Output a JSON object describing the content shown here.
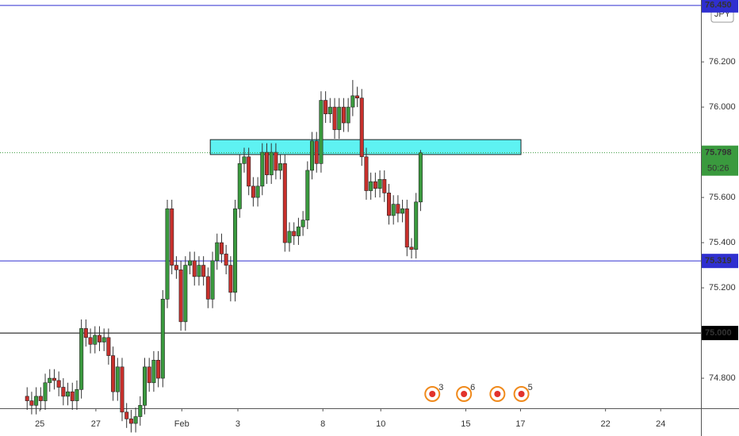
{
  "chart_data": {
    "type": "candlestick",
    "currency": "JPY",
    "x": [
      6,
      7,
      8,
      9,
      10,
      11,
      12,
      13,
      14,
      15,
      16,
      17,
      18,
      19,
      20,
      21,
      22,
      23,
      24,
      25,
      26,
      27,
      28,
      29,
      30,
      31,
      32,
      33,
      34,
      35,
      36,
      37,
      38,
      39,
      40,
      41,
      42,
      43,
      44,
      45,
      46,
      47,
      48,
      49,
      50,
      51,
      52,
      53,
      54,
      55,
      56,
      57,
      58,
      59,
      60,
      61,
      62,
      63,
      64,
      65,
      66,
      67,
      68,
      69,
      70,
      71,
      72,
      73,
      74,
      75,
      76,
      77,
      78,
      79,
      80,
      81,
      82,
      83,
      84,
      85,
      86,
      87,
      88,
      89,
      90,
      91,
      92,
      93
    ],
    "open": [
      74.72,
      74.7,
      74.68,
      74.72,
      74.7,
      74.78,
      74.8,
      74.79,
      74.76,
      74.72,
      74.74,
      74.7,
      74.75,
      75.02,
      74.98,
      74.95,
      74.99,
      74.96,
      74.98,
      74.9,
      74.74,
      74.85,
      74.65,
      74.62,
      74.6,
      74.63,
      74.68,
      74.85,
      74.78,
      74.88,
      74.8,
      75.15,
      75.55,
      75.3,
      75.28,
      75.05,
      75.3,
      75.32,
      75.25,
      75.3,
      75.25,
      75.15,
      75.32,
      75.4,
      75.35,
      75.3,
      75.18,
      75.55,
      75.75,
      75.78,
      75.65,
      75.6,
      75.65,
      75.8,
      75.7,
      75.8,
      75.72,
      75.75,
      75.4,
      75.45,
      75.43,
      75.47,
      75.5,
      75.72,
      75.85,
      75.75,
      76.03,
      75.97,
      76.0,
      75.9,
      76.0,
      75.93,
      76.0,
      76.05,
      76.04,
      75.78,
      75.63,
      75.67,
      75.64,
      75.68,
      75.62,
      75.52,
      75.57,
      75.53,
      75.55,
      75.38,
      75.37,
      75.58
    ],
    "high": [
      74.76,
      74.74,
      74.76,
      74.76,
      74.82,
      74.84,
      74.84,
      74.83,
      74.8,
      74.78,
      74.78,
      74.79,
      75.06,
      75.06,
      75.02,
      75.03,
      75.03,
      75.02,
      75.02,
      74.94,
      74.89,
      74.89,
      74.69,
      74.66,
      74.67,
      74.72,
      74.89,
      74.89,
      74.92,
      74.92,
      75.19,
      75.59,
      75.59,
      75.34,
      75.32,
      75.34,
      75.36,
      75.36,
      75.34,
      75.34,
      75.29,
      75.36,
      75.44,
      75.44,
      75.39,
      75.34,
      75.59,
      75.79,
      75.82,
      75.82,
      75.69,
      75.69,
      75.84,
      75.84,
      75.84,
      75.84,
      75.79,
      75.79,
      75.49,
      75.49,
      75.51,
      75.54,
      75.76,
      75.89,
      75.89,
      76.07,
      76.07,
      76.04,
      76.04,
      76.04,
      76.04,
      76.04,
      76.12,
      76.09,
      76.08,
      75.82,
      75.71,
      75.71,
      75.72,
      75.72,
      75.66,
      75.61,
      75.61,
      75.59,
      75.59,
      75.42,
      75.62,
      75.81
    ],
    "low": [
      74.66,
      74.64,
      74.64,
      74.66,
      74.66,
      74.74,
      74.75,
      74.72,
      74.68,
      74.68,
      74.66,
      74.66,
      74.71,
      74.94,
      74.91,
      74.91,
      74.92,
      74.92,
      74.86,
      74.7,
      74.7,
      74.61,
      74.58,
      74.56,
      74.56,
      74.59,
      74.64,
      74.74,
      74.74,
      74.76,
      74.76,
      75.11,
      75.26,
      75.24,
      75.01,
      75.01,
      75.26,
      75.21,
      75.21,
      75.21,
      75.11,
      75.11,
      75.28,
      75.31,
      75.26,
      75.14,
      75.14,
      75.51,
      75.71,
      75.61,
      75.56,
      75.56,
      75.61,
      75.66,
      75.66,
      75.68,
      75.68,
      75.36,
      75.36,
      75.39,
      75.39,
      75.43,
      75.46,
      75.68,
      75.71,
      75.71,
      75.93,
      75.93,
      75.86,
      75.86,
      75.89,
      75.89,
      75.96,
      76.0,
      75.74,
      75.59,
      75.59,
      75.6,
      75.6,
      75.58,
      75.48,
      75.48,
      75.49,
      75.49,
      75.34,
      75.33,
      75.33,
      75.54
    ],
    "close": [
      74.7,
      74.68,
      74.72,
      74.7,
      74.78,
      74.8,
      74.79,
      74.76,
      74.72,
      74.74,
      74.7,
      74.75,
      75.02,
      74.98,
      74.95,
      74.99,
      74.96,
      74.98,
      74.9,
      74.74,
      74.85,
      74.65,
      74.62,
      74.6,
      74.63,
      74.68,
      74.85,
      74.78,
      74.88,
      74.8,
      75.15,
      75.55,
      75.3,
      75.28,
      75.05,
      75.3,
      75.32,
      75.25,
      75.3,
      75.25,
      75.15,
      75.32,
      75.4,
      75.35,
      75.3,
      75.18,
      75.55,
      75.75,
      75.78,
      75.65,
      75.6,
      75.65,
      75.8,
      75.7,
      75.8,
      75.72,
      75.75,
      75.4,
      75.45,
      75.43,
      75.47,
      75.5,
      75.72,
      75.85,
      75.75,
      76.03,
      75.97,
      76.0,
      75.9,
      76.0,
      75.93,
      76.0,
      76.05,
      76.04,
      75.78,
      75.63,
      75.67,
      75.64,
      75.68,
      75.62,
      75.52,
      75.57,
      75.53,
      75.55,
      75.38,
      75.37,
      75.58,
      75.798
    ],
    "up_color": "#3a9a3e",
    "down_color": "#c8302c",
    "xlim": [
      0,
      155
    ],
    "xticks": [
      {
        "value": 8.8,
        "label": "25"
      },
      {
        "value": 21.2,
        "label": "27"
      },
      {
        "value": 40.2,
        "label": "Feb"
      },
      {
        "value": 52.6,
        "label": "3"
      },
      {
        "value": 71.4,
        "label": "8"
      },
      {
        "value": 84.2,
        "label": "10"
      },
      {
        "value": 103,
        "label": "15"
      },
      {
        "value": 115.1,
        "label": "17"
      },
      {
        "value": 133.9,
        "label": "22"
      },
      {
        "value": 146.1,
        "label": "24"
      }
    ],
    "ylim": [
      74.667,
      76.474
    ],
    "yticks": [
      {
        "value": 76.2,
        "label": "76.200"
      },
      {
        "value": 76.0,
        "label": "76.000"
      },
      {
        "value": 75.6,
        "label": "75.600"
      },
      {
        "value": 75.4,
        "label": "75.400"
      },
      {
        "value": 75.2,
        "label": "75.200"
      },
      {
        "value": 74.8,
        "label": "74.800"
      }
    ],
    "lines": [
      {
        "value": 76.45,
        "label": "76.450",
        "color": "#2f2fd0"
      },
      {
        "value": 75.319,
        "label": "75.319",
        "color": "#2f2fd0"
      },
      {
        "value": 75.0,
        "label": "75.000",
        "color": "#000000"
      }
    ],
    "zone": {
      "x": [
        46.5,
        115.2
      ],
      "y": [
        75.79,
        75.856
      ],
      "color": "#5ef2f2"
    },
    "last_price": {
      "value": 75.798,
      "label": "75.798",
      "countdown": "50:26",
      "color": "#3a9a3e"
    },
    "events": [
      {
        "x": 95.6,
        "label": "3"
      },
      {
        "x": 102.6,
        "label": "6"
      },
      {
        "x": 110
      },
      {
        "x": 115.3,
        "label": "5"
      }
    ]
  }
}
